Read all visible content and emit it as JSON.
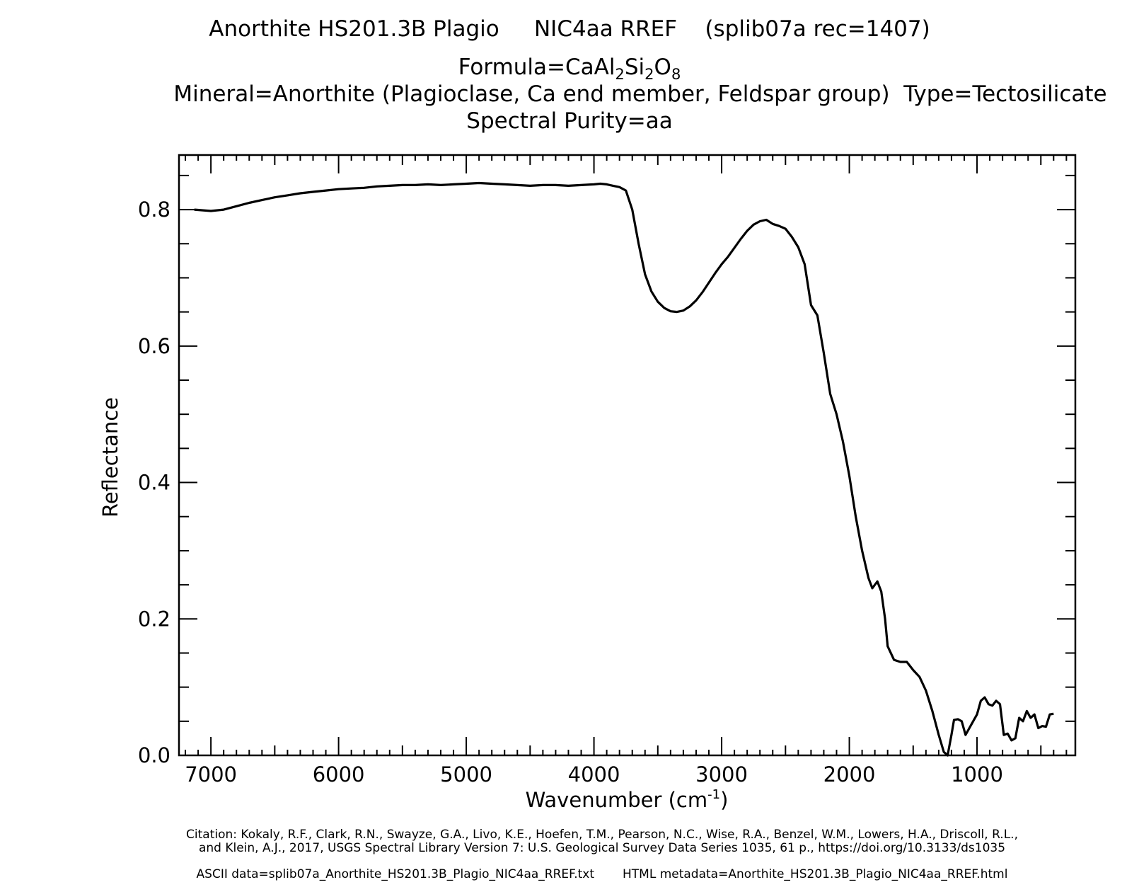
{
  "header": {
    "line1": "Anorthite HS201.3B Plagio     NIC4aa RREF    (splib07a rec=1407)",
    "formula_prefix": "Formula=CaAl",
    "formula_sub1": "2",
    "formula_mid": "Si",
    "formula_sub2": "2",
    "formula_o": "O",
    "formula_sub3": "8",
    "line3": "Mineral=Anorthite (Plagioclase, Ca end member, Feldspar group)  Type=Tectosilicate",
    "line4": "Spectral Purity=aa"
  },
  "footer": {
    "citation_line1": "Citation: Kokaly, R.F., Clark, R.N., Swayze, G.A., Livo, K.E., Hoefen, T.M., Pearson, N.C., Wise, R.A., Benzel, W.M., Lowers, H.A., Driscoll, R.L.,",
    "citation_line2": "and Klein, A.J., 2017, USGS Spectral Library Version 7: U.S. Geological Survey Data Series 1035, 61 p., https://doi.org/10.3133/ds1035",
    "ascii_data": "ASCII data=splib07a_Anorthite_HS201.3B_Plagio_NIC4aa_RREF.txt",
    "html_metadata": "HTML metadata=Anorthite_HS201.3B_Plagio_NIC4aa_RREF.html"
  },
  "chart_data": {
    "type": "line",
    "xlabel": "Wavenumber (cm",
    "xlabel_sup": "-1",
    "xlabel_close": ")",
    "ylabel": "Reflectance",
    "xlim": [
      7250,
      230
    ],
    "ylim": [
      0.0,
      0.88
    ],
    "x_ticks": [
      7000,
      6000,
      5000,
      4000,
      3000,
      2000,
      1000
    ],
    "x_tick_labels": [
      "7000",
      "6000",
      "5000",
      "4000",
      "3000",
      "2000",
      "1000"
    ],
    "y_ticks": [
      0.0,
      0.2,
      0.4,
      0.6,
      0.8
    ],
    "y_tick_labels": [
      "0.0",
      "0.2",
      "0.4",
      "0.6",
      "0.8"
    ],
    "grid": false,
    "line_color": "#000000",
    "series": [
      {
        "x": [
          7130,
          7000,
          6900,
          6800,
          6700,
          6600,
          6500,
          6400,
          6300,
          6200,
          6100,
          6000,
          5900,
          5800,
          5700,
          5600,
          5500,
          5400,
          5300,
          5200,
          5100,
          5000,
          4900,
          4800,
          4700,
          4600,
          4500,
          4400,
          4300,
          4200,
          4100,
          4000,
          3950,
          3900,
          3850,
          3800,
          3750,
          3700,
          3650,
          3600,
          3550,
          3500,
          3450,
          3400,
          3350,
          3300,
          3250,
          3200,
          3150,
          3100,
          3050,
          3000,
          2950,
          2900,
          2850,
          2800,
          2750,
          2700,
          2650,
          2600,
          2550,
          2500,
          2450,
          2400,
          2350,
          2300,
          2250,
          2200,
          2150,
          2100,
          2050,
          2000,
          1950,
          1900,
          1850,
          1820,
          1780,
          1750,
          1720,
          1700,
          1650,
          1600,
          1550,
          1500,
          1450,
          1400,
          1350,
          1300,
          1260,
          1230,
          1200,
          1180,
          1150,
          1120,
          1090,
          1060,
          1030,
          1000,
          970,
          940,
          910,
          880,
          850,
          820,
          790,
          760,
          730,
          700,
          670,
          640,
          610,
          580,
          550,
          520,
          490,
          460,
          430,
          400
        ],
        "y": [
          0.8,
          0.798,
          0.8,
          0.805,
          0.81,
          0.814,
          0.818,
          0.821,
          0.824,
          0.826,
          0.828,
          0.83,
          0.831,
          0.832,
          0.834,
          0.835,
          0.836,
          0.836,
          0.837,
          0.836,
          0.837,
          0.838,
          0.839,
          0.838,
          0.837,
          0.836,
          0.835,
          0.836,
          0.836,
          0.835,
          0.836,
          0.837,
          0.838,
          0.837,
          0.835,
          0.833,
          0.828,
          0.8,
          0.75,
          0.705,
          0.68,
          0.665,
          0.656,
          0.651,
          0.65,
          0.652,
          0.658,
          0.667,
          0.679,
          0.693,
          0.707,
          0.72,
          0.731,
          0.744,
          0.757,
          0.769,
          0.778,
          0.783,
          0.785,
          0.779,
          0.776,
          0.772,
          0.76,
          0.745,
          0.72,
          0.66,
          0.645,
          0.59,
          0.53,
          0.5,
          0.46,
          0.41,
          0.35,
          0.3,
          0.26,
          0.245,
          0.255,
          0.24,
          0.2,
          0.16,
          0.14,
          0.137,
          0.137,
          0.125,
          0.115,
          0.095,
          0.065,
          0.03,
          0.005,
          0.0,
          0.03,
          0.052,
          0.053,
          0.05,
          0.03,
          0.04,
          0.05,
          0.06,
          0.08,
          0.085,
          0.075,
          0.073,
          0.08,
          0.075,
          0.03,
          0.032,
          0.022,
          0.025,
          0.055,
          0.05,
          0.065,
          0.055,
          0.06,
          0.04,
          0.043,
          0.042,
          0.06,
          0.061
        ]
      }
    ]
  }
}
